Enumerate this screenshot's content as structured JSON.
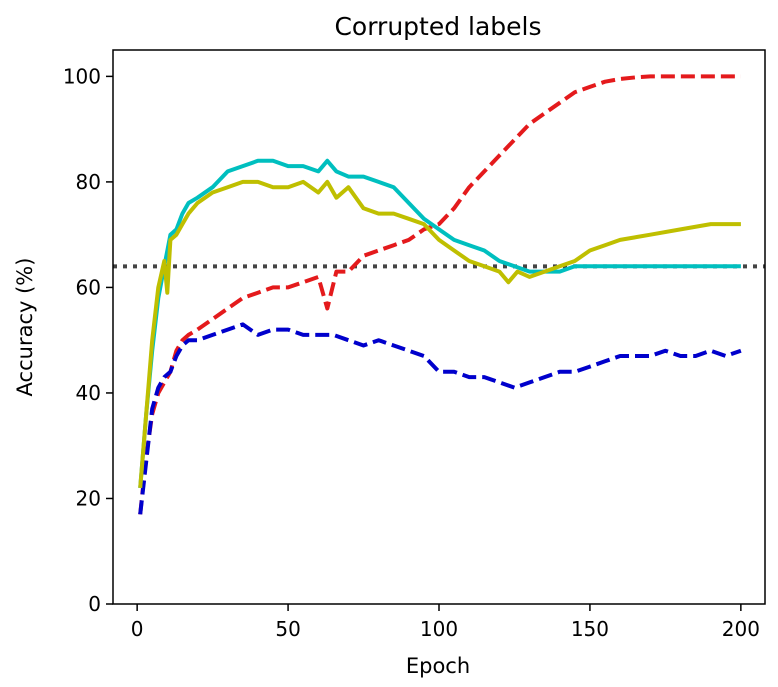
{
  "chart_data": {
    "type": "line",
    "title": "Corrupted labels",
    "xlabel": "Epoch",
    "ylabel": "Accuracy (%)",
    "xlim": [
      -8,
      208
    ],
    "ylim": [
      0,
      105
    ],
    "xticks": [
      0,
      50,
      100,
      150,
      200
    ],
    "yticks": [
      0,
      20,
      40,
      60,
      80,
      100
    ],
    "grid": false,
    "series": [
      {
        "color": "#e41a1c",
        "style": "dashed",
        "x": [
          1,
          3,
          5,
          7,
          9,
          11,
          13,
          15,
          17,
          20,
          25,
          30,
          35,
          40,
          45,
          50,
          55,
          60,
          63,
          66,
          70,
          75,
          80,
          85,
          90,
          95,
          100,
          105,
          110,
          115,
          120,
          125,
          130,
          135,
          140,
          145,
          150,
          155,
          160,
          165,
          170,
          180,
          190,
          200
        ],
        "y": [
          17,
          28,
          36,
          40,
          42,
          44,
          48,
          50,
          51,
          52,
          54,
          56,
          58,
          59,
          60,
          60,
          61,
          62,
          56,
          63,
          63,
          66,
          67,
          68,
          69,
          71,
          72,
          75,
          79,
          82,
          85,
          88,
          91,
          93,
          95,
          97,
          98,
          99,
          99.5,
          99.8,
          100,
          100,
          100,
          100
        ]
      },
      {
        "color": "#0000cc",
        "style": "dashed",
        "x": [
          1,
          3,
          5,
          7,
          9,
          11,
          13,
          15,
          17,
          20,
          25,
          30,
          35,
          40,
          45,
          50,
          55,
          60,
          65,
          70,
          75,
          80,
          85,
          90,
          95,
          100,
          105,
          110,
          115,
          120,
          125,
          130,
          135,
          140,
          145,
          150,
          155,
          160,
          165,
          170,
          175,
          180,
          185,
          190,
          195,
          200
        ],
        "y": [
          17,
          27,
          37,
          41,
          43,
          44,
          47,
          49,
          50,
          50,
          51,
          52,
          53,
          51,
          52,
          52,
          51,
          51,
          51,
          50,
          49,
          50,
          49,
          48,
          47,
          44,
          44,
          43,
          43,
          42,
          41,
          42,
          43,
          44,
          44,
          45,
          46,
          47,
          47,
          47,
          48,
          47,
          47,
          48,
          47,
          48
        ]
      },
      {
        "color": "#00bfbf",
        "style": "solid",
        "x": [
          1,
          3,
          5,
          7,
          9,
          11,
          13,
          15,
          17,
          20,
          25,
          30,
          35,
          40,
          45,
          50,
          55,
          60,
          63,
          66,
          70,
          75,
          80,
          85,
          90,
          95,
          100,
          105,
          110,
          115,
          120,
          125,
          130,
          135,
          140,
          145,
          150,
          155,
          160,
          170,
          180,
          190,
          200
        ],
        "y": [
          22,
          36,
          48,
          58,
          64,
          70,
          71,
          74,
          76,
          77,
          79,
          82,
          83,
          84,
          84,
          83,
          83,
          82,
          84,
          82,
          81,
          81,
          80,
          79,
          76,
          73,
          71,
          69,
          68,
          67,
          65,
          64,
          63,
          63,
          63,
          64,
          64,
          64,
          64,
          64,
          64,
          64,
          64
        ]
      },
      {
        "color": "#bfbf00",
        "style": "solid",
        "x": [
          1,
          3,
          5,
          7,
          9,
          10,
          11,
          13,
          15,
          17,
          20,
          25,
          30,
          35,
          40,
          45,
          50,
          55,
          60,
          63,
          66,
          70,
          75,
          80,
          85,
          90,
          95,
          100,
          105,
          110,
          115,
          120,
          123,
          126,
          130,
          135,
          140,
          145,
          150,
          155,
          160,
          170,
          180,
          190,
          200
        ],
        "y": [
          22,
          36,
          50,
          60,
          65,
          59,
          69,
          70,
          72,
          74,
          76,
          78,
          79,
          80,
          80,
          79,
          79,
          80,
          78,
          80,
          77,
          79,
          75,
          74,
          74,
          73,
          72,
          69,
          67,
          65,
          64,
          63,
          61,
          63,
          62,
          63,
          64,
          65,
          67,
          68,
          69,
          70,
          71,
          72,
          72
        ]
      }
    ],
    "reference_lines": [
      {
        "orientation": "horizontal",
        "y": 64,
        "style": "dotted",
        "color": "#444444"
      }
    ]
  }
}
